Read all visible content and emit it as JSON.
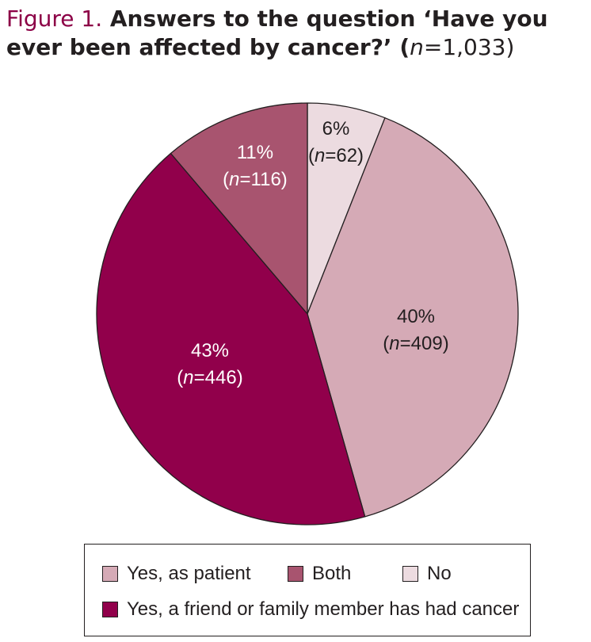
{
  "figure_label": "Figure 1.",
  "title_main": "Answers to the question ‘Have you ever been affected by cancer?’ (",
  "title_n": "n",
  "title_n_value": "=1,033)",
  "chart_data": {
    "type": "pie",
    "total": 1033,
    "start_angle_deg": 0,
    "direction": "clockwise",
    "slices": [
      {
        "name": "No",
        "percent": 6,
        "n": 62,
        "color": "#ecdbe0",
        "text_color": "#231f20"
      },
      {
        "name": "Yes, as patient",
        "percent": 40,
        "n": 409,
        "color": "#d5aab6",
        "text_color": "#231f20"
      },
      {
        "name": "Yes, a friend or family member has had cancer",
        "percent": 43,
        "n": 446,
        "color": "#91004b",
        "text_color": "#ffffff"
      },
      {
        "name": "Both",
        "percent": 11,
        "n": 116,
        "color": "#a8546f",
        "text_color": "#ffffff"
      }
    ],
    "labels": [
      {
        "pct": "6%",
        "n_prefix": "(",
        "n_var": "n",
        "n_rest": "=62)"
      },
      {
        "pct": "40%",
        "n_prefix": "(",
        "n_var": "n",
        "n_rest": "=409)"
      },
      {
        "pct": "43%",
        "n_prefix": "(",
        "n_var": "n",
        "n_rest": "=446)"
      },
      {
        "pct": "11%",
        "n_prefix": "(",
        "n_var": "n",
        "n_rest": "=116)"
      }
    ],
    "legend_position": "bottom",
    "legend": [
      {
        "label": "Yes, as patient",
        "color": "#d5aab6"
      },
      {
        "label": "Both",
        "color": "#a8546f"
      },
      {
        "label": "No",
        "color": "#ecdbe0"
      },
      {
        "label": "Yes, a friend or family member has had cancer",
        "color": "#91004b"
      }
    ]
  }
}
